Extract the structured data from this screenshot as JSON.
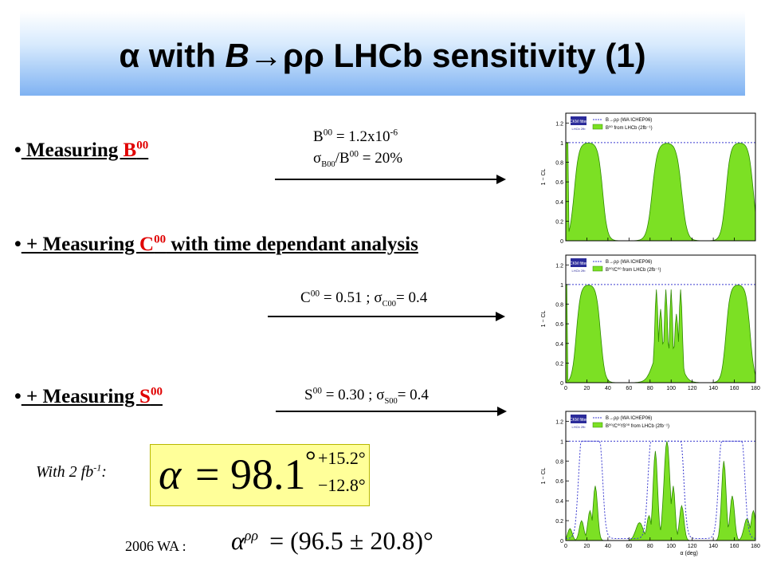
{
  "title": {
    "alpha": "α",
    "with": " with ",
    "b": "B",
    "arrow": "→",
    "rhorho": "ρρ",
    "rest": " LHCb sensitivity (1)"
  },
  "bullets": [
    {
      "bullet": "•",
      "lead": " Measuring ",
      "red": "B",
      "red_sup": "00",
      "tail": ""
    },
    {
      "bullet": "•",
      "lead": " + Measuring ",
      "red": "C",
      "red_sup": "00",
      "tail": " with time dependant analysis"
    },
    {
      "bullet": "•",
      "lead": " + Measuring ",
      "red": "S",
      "red_sup": "00",
      "tail": ""
    }
  ],
  "notes": {
    "b00_value": "B",
    "b00_sup": "00",
    "b00_text": " = 1.2x10",
    "b00_exp": "-6",
    "b00_err_sigma": "σ",
    "b00_err_sub": "B00",
    "b00_err_text": "/B",
    "b00_err_sup": "00",
    "b00_err_val": " = 20%",
    "c00_text": "C",
    "c00_sup": "00",
    "c00_val": " = 0.51 ; σ",
    "c00_sub": "C00",
    "c00_err": "= 0.4",
    "s00_text": "S",
    "s00_sup": "00",
    "s00_val": " = 0.30 ;  σ",
    "s00_sub": "S00",
    "s00_err": "= 0.4"
  },
  "result": {
    "with_label": "With 2 fb",
    "with_sup": "-1",
    "with_colon": ":",
    "alpha": "α",
    "eq": "=",
    "value": "98.1",
    "degree": "°",
    "plus": "+15.2°",
    "minus": "−12.8°"
  },
  "wa": {
    "label": "2006 WA  :",
    "alpha": "α",
    "sup": "ρρ",
    "expr": "= (96.5 ± 20.8)°"
  },
  "plots": {
    "legend_logo": "CKM fitter",
    "legend_logo_sub": "LHCb 2fb",
    "legend_line": "B→ρρ  (WA ICHEP06)",
    "legend_fill": [
      "B⁰⁰ from LHCb (2fb⁻¹)",
      "B⁰⁰/C⁰⁰ from LHCb (2fb⁻¹)",
      "B⁰⁰/C⁰⁰/S⁰⁰ from LHCb (2fb⁻¹)"
    ],
    "ylabel": "1 − CL",
    "xlabel": "α (deg)",
    "yticks": [
      "0",
      "0.2",
      "0.4",
      "0.6",
      "0.8",
      "1",
      "1.2"
    ],
    "xticks": [
      "0",
      "20",
      "40",
      "60",
      "80",
      "100",
      "120",
      "140",
      "160",
      "180"
    ],
    "colors": {
      "fill": "#7ce024",
      "fill_stroke": "#2f8a00",
      "line": "#3a3ad0"
    }
  }
}
